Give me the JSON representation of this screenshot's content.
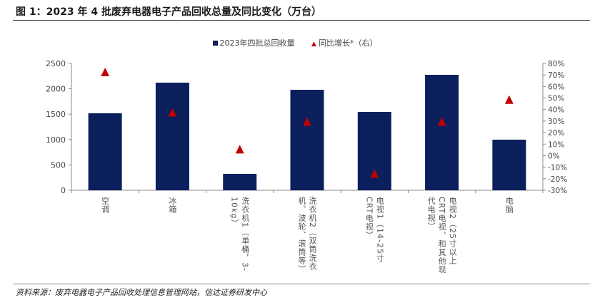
{
  "title": "图 1：2023 年 4 批废弃电器电子产品回收总量及同比变化（万台）",
  "source": "资料来源：废弃电器电子产品回收处理信息管理网站，信达证券研发中心",
  "chart_data": {
    "type": "bar",
    "categories": [
      "空调",
      "冰箱",
      "洗衣机1（单桶，3-10kg）",
      "洗衣机2（双筒洗衣机、波轮、滚筒等）",
      "电视1（14-25寸CRT电视）",
      "电视2（25寸以上CRT电视、和其他现代电视）",
      "电脑"
    ],
    "series": [
      {
        "name": "2023年四批总回收量",
        "type": "bar",
        "axis": "left",
        "color": "#0b1f5c",
        "values": [
          1517,
          2121,
          323,
          1980,
          1545,
          2275,
          997
        ]
      },
      {
        "name": "同比增长*（右）",
        "type": "scatter",
        "axis": "right",
        "color": "#c00000",
        "values": [
          72,
          37,
          5,
          29,
          -16,
          29,
          48
        ]
      }
    ],
    "y_left": {
      "range": [
        0,
        2500
      ],
      "ticks": [
        "0",
        "500",
        "1000",
        "1500",
        "2000",
        "2500"
      ]
    },
    "y_right": {
      "range": [
        -30,
        80
      ],
      "ticks": [
        "-30%",
        "-20%",
        "-10%",
        "0%",
        "10%",
        "20%",
        "30%",
        "40%",
        "50%",
        "60%",
        "70%",
        "80%"
      ]
    },
    "legend": "top"
  }
}
